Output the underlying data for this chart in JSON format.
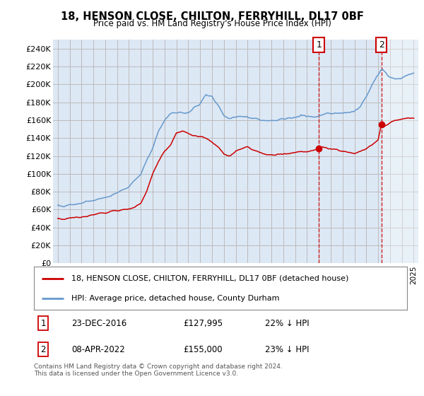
{
  "title": "18, HENSON CLOSE, CHILTON, FERRYHILL, DL17 0BF",
  "subtitle": "Price paid vs. HM Land Registry's House Price Index (HPI)",
  "ylabel_ticks": [
    "£0",
    "£20K",
    "£40K",
    "£60K",
    "£80K",
    "£100K",
    "£120K",
    "£140K",
    "£160K",
    "£180K",
    "£200K",
    "£220K",
    "£240K"
  ],
  "ylim": [
    0,
    250000
  ],
  "yticks": [
    0,
    20000,
    40000,
    60000,
    80000,
    100000,
    120000,
    140000,
    160000,
    180000,
    200000,
    220000,
    240000
  ],
  "legend_line1": "18, HENSON CLOSE, CHILTON, FERRYHILL, DL17 0BF (detached house)",
  "legend_line2": "HPI: Average price, detached house, County Durham",
  "legend_color1": "#cc0000",
  "legend_color2": "#6699cc",
  "sale1_date": "23-DEC-2016",
  "sale1_price": "£127,995",
  "sale1_hpi": "22% ↓ HPI",
  "sale2_date": "08-APR-2022",
  "sale2_price": "£155,000",
  "sale2_hpi": "23% ↓ HPI",
  "footer": "Contains HM Land Registry data © Crown copyright and database right 2024.\nThis data is licensed under the Open Government Licence v3.0.",
  "vline1_x": 2017.0,
  "vline2_x": 2022.27,
  "sale1_marker_y": 127995,
  "sale2_marker_y": 155000,
  "background_color": "#dde8f5",
  "hatch_start_x": 2022.27,
  "grid_color": "#bbbbbb",
  "xlim_left": 1994.6,
  "xlim_right": 2025.4
}
